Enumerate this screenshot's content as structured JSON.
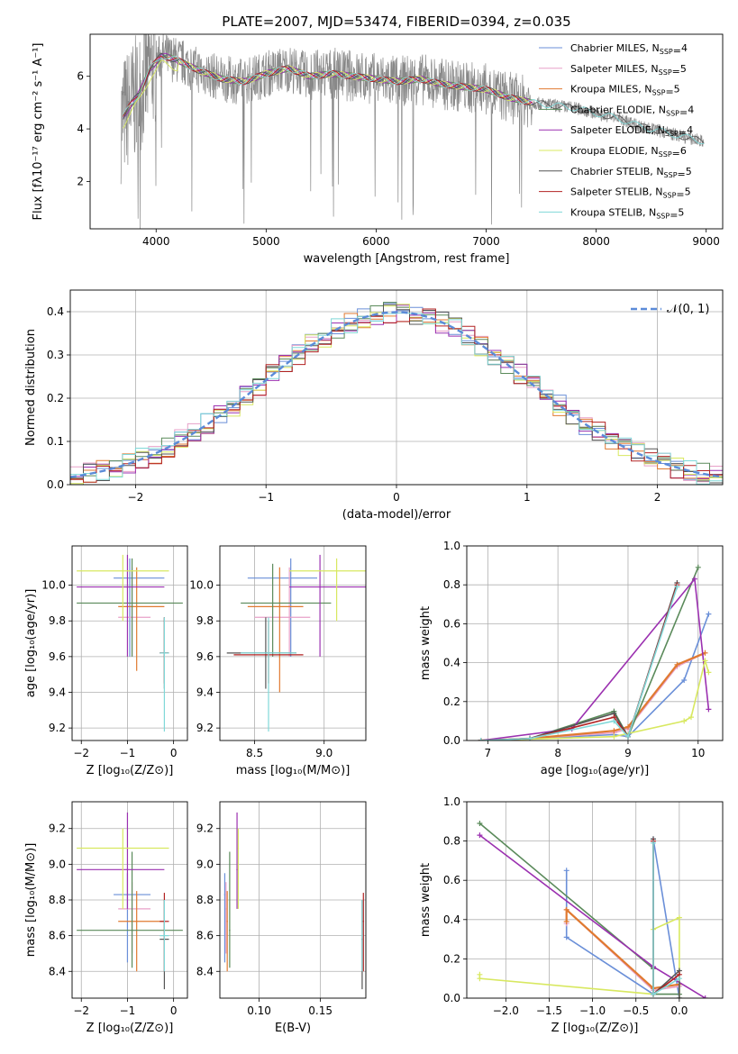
{
  "figure": {
    "title": "PLATE=2007, MJD=53474, FIBERID=0394, z=0.035"
  },
  "models": [
    {
      "name": "Chabrier MILES",
      "nssp": "4",
      "color": "#6a8fd8"
    },
    {
      "name": "Salpeter MILES",
      "nssp": "5",
      "color": "#e8a0c8"
    },
    {
      "name": "Kroupa MILES",
      "nssp": "5",
      "color": "#e07a30"
    },
    {
      "name": "Chabrier ELODIE",
      "nssp": "4",
      "color": "#5a8a5a"
    },
    {
      "name": "Salpeter ELODIE",
      "nssp": "4",
      "color": "#9b30b0"
    },
    {
      "name": "Kroupa ELODIE",
      "nssp": "6",
      "color": "#d8e860"
    },
    {
      "name": "Chabrier STELIB",
      "nssp": "5",
      "color": "#555555"
    },
    {
      "name": "Salpeter STELIB",
      "nssp": "5",
      "color": "#b22222"
    },
    {
      "name": "Kroupa STELIB",
      "nssp": "5",
      "color": "#80d8d8"
    }
  ],
  "chart_data": [
    {
      "id": "spectrum",
      "type": "line",
      "xlabel": "wavelength [Angstrom, rest frame]",
      "ylabel": "Flux [fλ10⁻¹⁷ erg cm⁻² s⁻¹ A⁻¹]",
      "xlim": [
        3400,
        9150
      ],
      "ylim": [
        0.2,
        7.6
      ],
      "xticks": [
        4000,
        5000,
        6000,
        7000,
        8000,
        9000
      ],
      "yticks": [
        2,
        4,
        6
      ],
      "grid": false,
      "legend": "right",
      "legend_suffix": "N",
      "legend_subscript": "SSP",
      "data_x": [
        3680,
        3750,
        3850,
        3950,
        4050,
        4200,
        4400,
        4600,
        4800,
        5000,
        5200,
        5400,
        5600,
        5800,
        6000,
        6200,
        6400,
        6600,
        6800,
        7000,
        7200,
        7420,
        7600,
        7800,
        8000,
        8200,
        8400,
        8600,
        8800,
        9000
      ],
      "data_y": [
        4.3,
        4.8,
        5.4,
        6.3,
        6.8,
        6.6,
        6.2,
        5.9,
        5.8,
        6.1,
        6.3,
        6.0,
        6.1,
        6.0,
        5.9,
        5.8,
        5.9,
        5.7,
        5.6,
        5.5,
        5.2,
        5.0,
        4.9,
        4.8,
        4.6,
        4.4,
        4.1,
        3.9,
        3.7,
        3.5
      ]
    },
    {
      "id": "residuals",
      "type": "line",
      "xlabel": "(data-model)/error",
      "ylabel": "Normed distribution",
      "xlim": [
        -2.5,
        2.5
      ],
      "ylim": [
        0,
        0.45
      ],
      "xticks": [
        -2,
        -1,
        0,
        1,
        2
      ],
      "xticklabels": [
        "−2",
        "−1",
        "0",
        "1",
        "2"
      ],
      "yticks": [
        0,
        0.1,
        0.2,
        0.3,
        0.4
      ],
      "yticklabels": [
        "0.0",
        "0.1",
        "0.2",
        "0.3",
        "0.4"
      ],
      "grid": true,
      "legend": "top-right",
      "legend_label": "𝒩(0, 1)"
    },
    {
      "id": "z_age",
      "type": "scatter",
      "xlabel": "Z [log₁₀(Z/Z⊙)]",
      "ylabel": "age  [log₁₀(age/yr)]",
      "xlim": [
        -2.2,
        0.3
      ],
      "ylim": [
        9.13,
        10.22
      ],
      "xticks": [
        -2,
        -1,
        0
      ],
      "xticklabels": [
        "−2",
        "−1",
        "0"
      ],
      "yticks": [
        9.2,
        9.4,
        9.6,
        9.8,
        10.0
      ],
      "yticklabels": [
        "9.2",
        "9.4",
        "9.6",
        "9.8",
        "10.0"
      ],
      "grid": true,
      "points": [
        {
          "m": 0,
          "x": -0.95,
          "xl": -1.3,
          "xh": -0.2,
          "y": 10.04,
          "yl": 9.6,
          "yh": 10.15
        },
        {
          "m": 1,
          "x": -0.9,
          "xl": -1.2,
          "xh": -0.5,
          "y": 9.82,
          "yl": 9.6,
          "yh": 10.1
        },
        {
          "m": 2,
          "x": -0.8,
          "xl": -1.2,
          "xh": -0.2,
          "y": 9.88,
          "yl": 9.52,
          "yh": 10.1
        },
        {
          "m": 3,
          "x": -0.9,
          "xl": -2.1,
          "xh": 0.2,
          "y": 9.9,
          "yl": 9.6,
          "yh": 10.15
        },
        {
          "m": 4,
          "x": -1.0,
          "xl": -2.1,
          "xh": -0.2,
          "y": 9.99,
          "yl": 9.6,
          "yh": 10.17
        },
        {
          "m": 5,
          "x": -1.1,
          "xl": -2.1,
          "xh": -0.1,
          "y": 10.08,
          "yl": 9.8,
          "yh": 10.17
        },
        {
          "m": 6,
          "x": -0.2,
          "xl": -0.3,
          "xh": -0.1,
          "y": 9.62,
          "yl": 9.42,
          "yh": 9.82
        },
        {
          "m": 7,
          "x": -0.2,
          "xl": -0.3,
          "xh": -0.1,
          "y": 9.62,
          "yl": 9.45,
          "yh": 9.82
        },
        {
          "m": 8,
          "x": -0.2,
          "xl": -0.3,
          "xh": -0.1,
          "y": 9.62,
          "yl": 9.18,
          "yh": 9.82
        }
      ]
    },
    {
      "id": "mass_age",
      "type": "scatter",
      "xlabel": "mass [log₁₀(M/M⊙)]",
      "ylabel": "",
      "xlim": [
        8.25,
        9.3
      ],
      "ylim": [
        9.13,
        10.22
      ],
      "xticks": [
        8.5,
        9.0
      ],
      "xticklabels": [
        "8.5",
        "9.0"
      ],
      "yticks": [
        9.2,
        9.4,
        9.6,
        9.8,
        10.0
      ],
      "yticklabels": [
        "9.2",
        "9.4",
        "9.6",
        "9.8",
        "10.0"
      ],
      "grid": true,
      "points": [
        {
          "m": 0,
          "x": 8.76,
          "xl": 8.45,
          "xh": 8.95,
          "y": 10.04,
          "yl": 9.6,
          "yh": 10.15
        },
        {
          "m": 1,
          "x": 8.75,
          "xl": 8.5,
          "xh": 8.9,
          "y": 9.82,
          "yl": 9.6,
          "yh": 10.1
        },
        {
          "m": 2,
          "x": 8.68,
          "xl": 8.45,
          "xh": 8.85,
          "y": 9.88,
          "yl": 9.4,
          "yh": 10.1
        },
        {
          "m": 3,
          "x": 8.63,
          "xl": 8.4,
          "xh": 9.05,
          "y": 9.9,
          "yl": 9.6,
          "yh": 10.12
        },
        {
          "m": 4,
          "x": 8.97,
          "xl": 8.75,
          "xh": 9.3,
          "y": 9.99,
          "yl": 9.6,
          "yh": 10.17
        },
        {
          "m": 5,
          "x": 9.09,
          "xl": 8.75,
          "xh": 9.3,
          "y": 10.08,
          "yl": 9.8,
          "yh": 10.15
        },
        {
          "m": 6,
          "x": 8.58,
          "xl": 8.3,
          "xh": 8.8,
          "y": 9.62,
          "yl": 9.42,
          "yh": 9.82
        },
        {
          "m": 7,
          "x": 8.6,
          "xl": 8.35,
          "xh": 8.85,
          "y": 9.61,
          "yl": 9.45,
          "yh": 9.8
        },
        {
          "m": 8,
          "x": 8.6,
          "xl": 8.4,
          "xh": 8.8,
          "y": 9.62,
          "yl": 9.18,
          "yh": 9.82
        }
      ]
    },
    {
      "id": "age_weight",
      "type": "line",
      "xlabel": "age  [log₁₀(age/yr)]",
      "ylabel": "mass weight",
      "xlim": [
        6.7,
        10.35
      ],
      "ylim": [
        0,
        1.0
      ],
      "xticks": [
        7,
        8,
        9,
        10
      ],
      "xticklabels": [
        "7",
        "8",
        "9",
        "10"
      ],
      "yticks": [
        0,
        0.2,
        0.4,
        0.6,
        0.8,
        1.0
      ],
      "yticklabels": [
        "0.0",
        "0.2",
        "0.4",
        "0.6",
        "0.8",
        "1.0"
      ],
      "grid": true,
      "series": [
        {
          "m": 0,
          "x": [
            6.9,
            7.6,
            8.8,
            9.0,
            9.8,
            10.15
          ],
          "y": [
            0.0,
            0.01,
            0.03,
            0.02,
            0.31,
            0.65
          ]
        },
        {
          "m": 1,
          "x": [
            6.9,
            7.6,
            8.8,
            9.0,
            9.7,
            10.1
          ],
          "y": [
            0.0,
            0.01,
            0.04,
            0.06,
            0.38,
            0.45
          ]
        },
        {
          "m": 2,
          "x": [
            6.9,
            7.6,
            8.8,
            9.0,
            9.7,
            10.1
          ],
          "y": [
            0.0,
            0.01,
            0.05,
            0.07,
            0.39,
            0.45
          ]
        },
        {
          "m": 3,
          "x": [
            6.9,
            7.6,
            8.8,
            9.0,
            10.0
          ],
          "y": [
            0.0,
            0.01,
            0.15,
            0.02,
            0.89
          ]
        },
        {
          "m": 4,
          "x": [
            6.9,
            8.2,
            9.95,
            10.15
          ],
          "y": [
            0.0,
            0.06,
            0.83,
            0.16
          ]
        },
        {
          "m": 5,
          "x": [
            6.9,
            8.8,
            9.8,
            9.9,
            10.1,
            10.15
          ],
          "y": [
            0.0,
            0.02,
            0.1,
            0.12,
            0.41,
            0.35
          ]
        },
        {
          "m": 6,
          "x": [
            6.9,
            7.6,
            8.8,
            9.0,
            9.7
          ],
          "y": [
            0.0,
            0.01,
            0.14,
            0.02,
            0.81
          ]
        },
        {
          "m": 7,
          "x": [
            6.9,
            7.6,
            8.8,
            9.0,
            9.7
          ],
          "y": [
            0.0,
            0.01,
            0.12,
            0.02,
            0.8
          ]
        },
        {
          "m": 8,
          "x": [
            6.9,
            7.6,
            8.8,
            9.0,
            9.7
          ],
          "y": [
            0.0,
            0.01,
            0.1,
            0.02,
            0.79
          ]
        }
      ]
    },
    {
      "id": "z_mass",
      "type": "scatter",
      "xlabel": "Z [log₁₀(Z/Z⊙)]",
      "ylabel": "mass [log₁₀(M/M⊙)]",
      "xlim": [
        -2.2,
        0.3
      ],
      "ylim": [
        8.25,
        9.35
      ],
      "xticks": [
        -2,
        -1,
        0
      ],
      "xticklabels": [
        "−2",
        "−1",
        "0"
      ],
      "yticks": [
        8.4,
        8.6,
        8.8,
        9.0,
        9.2
      ],
      "yticklabels": [
        "8.4",
        "8.6",
        "8.8",
        "9.0",
        "9.2"
      ],
      "grid": true,
      "points": [
        {
          "m": 0,
          "x": -1.0,
          "xl": -1.3,
          "xh": -0.5,
          "y": 8.83,
          "yl": 8.45,
          "yh": 8.95
        },
        {
          "m": 1,
          "x": -0.9,
          "xl": -1.2,
          "xh": -0.5,
          "y": 8.75,
          "yl": 8.5,
          "yh": 8.9
        },
        {
          "m": 2,
          "x": -0.8,
          "xl": -1.2,
          "xh": -0.2,
          "y": 8.68,
          "yl": 8.4,
          "yh": 8.85
        },
        {
          "m": 3,
          "x": -0.9,
          "xl": -2.1,
          "xh": 0.2,
          "y": 8.63,
          "yl": 8.42,
          "yh": 9.07
        },
        {
          "m": 4,
          "x": -1.0,
          "xl": -2.1,
          "xh": -0.2,
          "y": 8.97,
          "yl": 8.75,
          "yh": 9.29
        },
        {
          "m": 5,
          "x": -1.1,
          "xl": -2.1,
          "xh": -0.1,
          "y": 9.09,
          "yl": 8.75,
          "yh": 9.2
        },
        {
          "m": 6,
          "x": -0.2,
          "xl": -0.3,
          "xh": -0.1,
          "y": 8.58,
          "yl": 8.3,
          "yh": 8.8
        },
        {
          "m": 7,
          "x": -0.2,
          "xl": -0.3,
          "xh": -0.1,
          "y": 8.68,
          "yl": 8.4,
          "yh": 8.84
        },
        {
          "m": 8,
          "x": -0.2,
          "xl": -0.3,
          "xh": -0.1,
          "y": 8.6,
          "yl": 8.4,
          "yh": 8.8
        }
      ]
    },
    {
      "id": "ebv_mass",
      "type": "scatter",
      "xlabel": "E(B-V)",
      "ylabel": "",
      "xlim": [
        0.068,
        0.187
      ],
      "ylim": [
        8.25,
        9.35
      ],
      "xticks": [
        0.1,
        0.15
      ],
      "xticklabels": [
        "0.10",
        "0.15"
      ],
      "yticks": [
        8.4,
        8.6,
        8.8,
        9.0,
        9.2
      ],
      "yticklabels": [
        "8.4",
        "8.6",
        "8.8",
        "9.0",
        "9.2"
      ],
      "grid": true,
      "points": [
        {
          "m": 0,
          "x": 0.072,
          "y": 8.83,
          "yl": 8.45,
          "yh": 8.95
        },
        {
          "m": 1,
          "x": 0.073,
          "y": 8.75,
          "yl": 8.5,
          "yh": 8.9
        },
        {
          "m": 2,
          "x": 0.074,
          "y": 8.68,
          "yl": 8.4,
          "yh": 8.85
        },
        {
          "m": 3,
          "x": 0.076,
          "y": 8.63,
          "yl": 8.42,
          "yh": 9.07
        },
        {
          "m": 4,
          "x": 0.082,
          "y": 8.97,
          "yl": 8.75,
          "yh": 9.29
        },
        {
          "m": 5,
          "x": 0.083,
          "y": 9.09,
          "yl": 8.75,
          "yh": 9.2
        },
        {
          "m": 6,
          "x": 0.184,
          "y": 8.58,
          "yl": 8.3,
          "yh": 8.8
        },
        {
          "m": 7,
          "x": 0.185,
          "y": 8.68,
          "yl": 8.4,
          "yh": 8.84
        },
        {
          "m": 8,
          "x": 0.184,
          "y": 8.6,
          "yl": 8.4,
          "yh": 8.8
        }
      ]
    },
    {
      "id": "z_weight",
      "type": "line",
      "xlabel": "Z [log₁₀(Z/Z⊙)]",
      "ylabel": "mass weight",
      "xlim": [
        -2.45,
        0.5
      ],
      "ylim": [
        0,
        1.0
      ],
      "xticks": [
        -2.0,
        -1.5,
        -1.0,
        -0.5,
        0.0
      ],
      "xticklabels": [
        "−2.0",
        "−1.5",
        "−1.0",
        "−0.5",
        "0.0"
      ],
      "yticks": [
        0,
        0.2,
        0.4,
        0.6,
        0.8,
        1.0
      ],
      "yticklabels": [
        "0.0",
        "0.2",
        "0.4",
        "0.6",
        "0.8",
        "1.0"
      ],
      "grid": true,
      "series": [
        {
          "m": 0,
          "x": [
            -1.3,
            -1.3,
            -0.3,
            -0.3,
            0.0
          ],
          "y": [
            0.65,
            0.31,
            0.02,
            0.81,
            0.0
          ]
        },
        {
          "m": 1,
          "x": [
            -1.3,
            -1.3,
            -0.3,
            0.0
          ],
          "y": [
            0.38,
            0.45,
            0.04,
            0.06
          ]
        },
        {
          "m": 2,
          "x": [
            -1.3,
            -1.3,
            -0.3,
            0.0
          ],
          "y": [
            0.39,
            0.45,
            0.05,
            0.07
          ]
        },
        {
          "m": 3,
          "x": [
            -2.3,
            -0.3,
            -0.3,
            0.0
          ],
          "y": [
            0.89,
            0.15,
            0.02,
            0.02
          ]
        },
        {
          "m": 4,
          "x": [
            -2.3,
            -0.3,
            0.3
          ],
          "y": [
            0.83,
            0.16,
            0.0
          ]
        },
        {
          "m": 5,
          "x": [
            -2.3,
            -2.3,
            -0.3,
            -0.3,
            0.0,
            0.0
          ],
          "y": [
            0.12,
            0.1,
            0.02,
            0.35,
            0.41,
            0.0
          ]
        },
        {
          "m": 6,
          "x": [
            -0.3,
            -0.3,
            0.0,
            0.0
          ],
          "y": [
            0.81,
            0.02,
            0.14,
            0.0
          ]
        },
        {
          "m": 7,
          "x": [
            -0.3,
            -0.3,
            0.0
          ],
          "y": [
            0.8,
            0.02,
            0.12
          ]
        },
        {
          "m": 8,
          "x": [
            -0.3,
            -0.3,
            0.0
          ],
          "y": [
            0.79,
            0.02,
            0.1
          ]
        }
      ]
    }
  ]
}
